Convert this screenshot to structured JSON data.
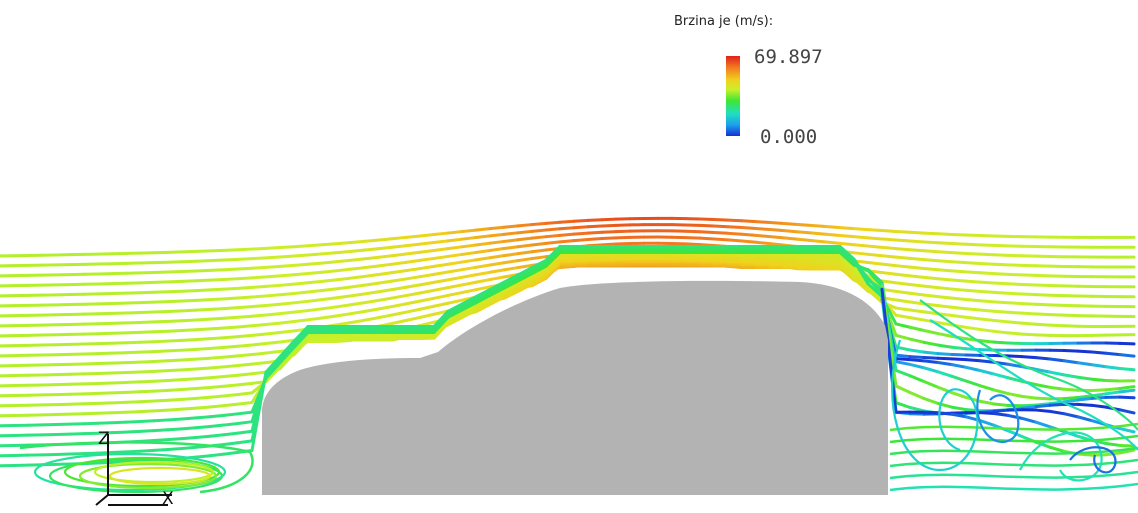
{
  "legend": {
    "title": "Brzina je (m/s):",
    "max_label": "69.897",
    "min_label": "0.000",
    "colormap": [
      "#1630d6",
      "#1ea0ec",
      "#1fe0c0",
      "#3ee634",
      "#c9f02a",
      "#f0d21c",
      "#f2781f",
      "#e0201c"
    ]
  },
  "axes": {
    "z_label": "Z",
    "x_label": "X"
  },
  "colors": {
    "body": "#b3b3b3",
    "background": "#ffffff"
  }
}
